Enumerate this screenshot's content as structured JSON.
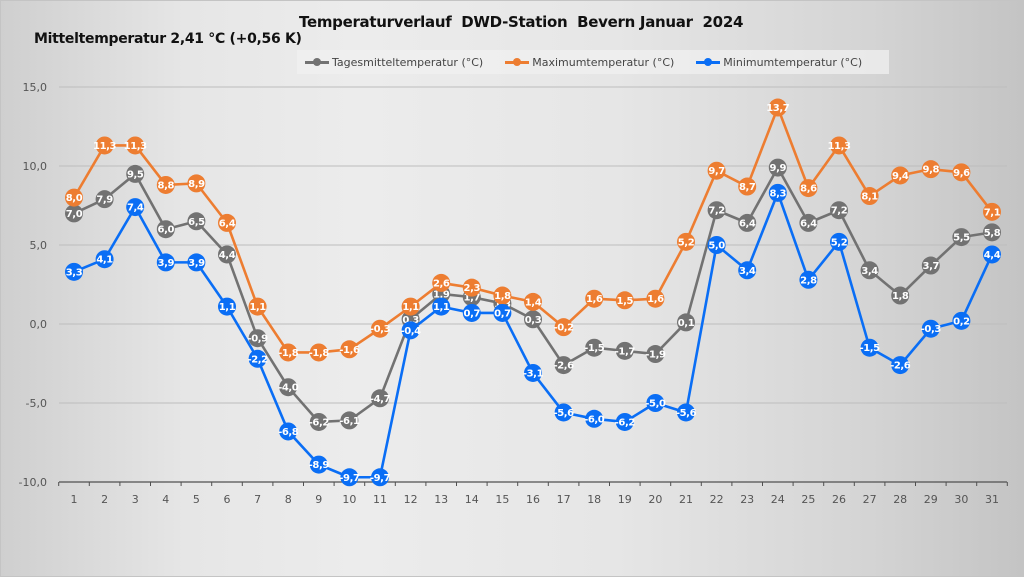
{
  "header": {
    "mean_label": "Mitteltemperatur 2,41 °C (+0,56 K)",
    "title": "Temperaturverlauf  DWD-Station  Bevern Januar  2024"
  },
  "chart_data": {
    "type": "line",
    "title": "Temperaturverlauf  DWD-Station  Bevern Januar  2024",
    "subtitle": "Mitteltemperatur 2,41 °C (+0,56 K)",
    "xlabel": "",
    "ylabel": "",
    "ylim": [
      -10,
      15
    ],
    "y_ticks": [
      15,
      10,
      5,
      0,
      -5,
      -10
    ],
    "y_tick_labels": [
      "15,0",
      "10,0",
      "5,0",
      "0,0",
      "-5,0",
      "-10,0"
    ],
    "grid": true,
    "legend_position": "top",
    "x": [
      1,
      2,
      3,
      4,
      5,
      6,
      7,
      8,
      9,
      10,
      11,
      12,
      13,
      14,
      15,
      16,
      17,
      18,
      19,
      20,
      21,
      22,
      23,
      24,
      25,
      26,
      27,
      28,
      29,
      30,
      31
    ],
    "x_tick_labels": [
      "1",
      "2",
      "3",
      "4",
      "5",
      "6",
      "7",
      "8",
      "9",
      "10",
      "11",
      "12",
      "13",
      "14",
      "15",
      "16",
      "17",
      "18",
      "19",
      "20",
      "21",
      "22",
      "23",
      "24",
      "25",
      "26",
      "27",
      "28",
      "29",
      "30",
      "31"
    ],
    "series": [
      {
        "name": "Tagesmitteltemperatur (°C)",
        "color": "#727272",
        "values": [
          7.0,
          7.9,
          9.5,
          6.0,
          6.5,
          4.4,
          -0.9,
          -4.0,
          -6.2,
          -6.1,
          -4.7,
          0.3,
          1.9,
          1.7,
          1.3,
          0.3,
          -2.6,
          -1.5,
          -1.7,
          -1.9,
          0.1,
          7.2,
          6.4,
          9.9,
          6.4,
          7.2,
          3.4,
          1.8,
          3.7,
          5.5,
          5.8
        ],
        "labels": [
          "7,0",
          "7,9",
          "9,5",
          "6,0",
          "6,5",
          "4,4",
          "-0,9",
          "-4,0",
          "-6,2",
          "-6,1",
          "-4,7",
          "0,3",
          "1,9",
          "1,7",
          "1,3",
          "0,3",
          "-2,6",
          "-1,5",
          "-1,7",
          "-1,9",
          "0,1",
          "7,2",
          "6,4",
          "9,9",
          "6,4",
          "7,2",
          "3,4",
          "1,8",
          "3,7",
          "5,5",
          "5,8"
        ]
      },
      {
        "name": "Maximumtemperatur (°C)",
        "color": "#ed7d31",
        "values": [
          8.0,
          11.3,
          11.3,
          8.8,
          8.9,
          6.4,
          1.1,
          -1.8,
          -1.8,
          -1.6,
          -0.3,
          1.1,
          2.6,
          2.3,
          1.8,
          1.4,
          -0.2,
          1.6,
          1.5,
          1.6,
          5.2,
          9.7,
          8.7,
          13.7,
          8.6,
          11.3,
          8.1,
          9.4,
          9.8,
          9.6,
          7.1
        ],
        "labels": [
          "8,0",
          "11,3",
          "11,3",
          "8,8",
          "8,9",
          "6,4",
          "1,1",
          "-1,8",
          "-1,8",
          "-1,6",
          "-0,3",
          "1,1",
          "2,6",
          "2,3",
          "1,8",
          "1,4",
          "-0,2",
          "1,6",
          "1,5",
          "1,6",
          "5,2",
          "9,7",
          "8,7",
          "13,7",
          "8,6",
          "11,3",
          "8,1",
          "9,4",
          "9,8",
          "9,6",
          "7,1"
        ]
      },
      {
        "name": "Minimumtemperatur (°C)",
        "color": "#0a6ef5",
        "values": [
          3.3,
          4.1,
          7.4,
          3.9,
          3.9,
          1.1,
          -2.2,
          -6.8,
          -8.9,
          -9.7,
          -9.7,
          -0.4,
          1.1,
          0.7,
          0.7,
          -3.1,
          -5.6,
          -6.0,
          -6.2,
          -5.0,
          -5.6,
          5.0,
          3.4,
          8.3,
          2.8,
          5.2,
          -1.5,
          -2.6,
          -0.3,
          0.2,
          4.4
        ],
        "labels": [
          "3,3",
          "4,1",
          "7,4",
          "3,9",
          "3,9",
          "1,1",
          "-2,2",
          "-6,8",
          "-8,9",
          "-9,7",
          "-9,7",
          "-0,4",
          "1,1",
          "0,7",
          "0,7",
          "-3,1",
          "-5,6",
          "-6,0",
          "-6,2",
          "-5,0",
          "-5,6",
          "5,0",
          "3,4",
          "8,3",
          "2,8",
          "5,2",
          "-1,5",
          "-2,6",
          "-0,3",
          "0,2",
          "4,4"
        ]
      }
    ]
  }
}
